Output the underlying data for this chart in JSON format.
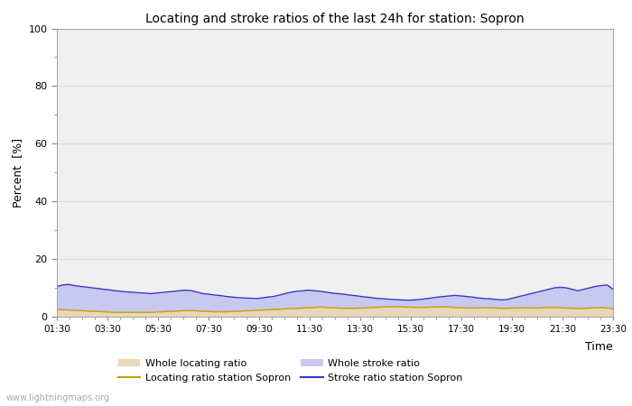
{
  "title": "Locating and stroke ratios of the last 24h for station: Sopron",
  "xlabel": "Time",
  "ylabel": "Percent  [%]",
  "watermark": "www.lightningmaps.org",
  "ylim": [
    0,
    100
  ],
  "yticks": [
    0,
    20,
    40,
    60,
    80,
    100
  ],
  "yticks_minor": [
    10,
    30,
    50,
    70,
    90
  ],
  "xtick_labels": [
    "01:30",
    "03:30",
    "05:30",
    "07:30",
    "09:30",
    "11:30",
    "13:30",
    "15:30",
    "17:30",
    "19:30",
    "21:30",
    "23:30"
  ],
  "background_color": "#ffffff",
  "plot_bg_color": "#f0f0f0",
  "grid_color": "#dddddd",
  "whole_locating_fill_color": "#e8d8b8",
  "whole_stroke_fill_color": "#c8c8f0",
  "locating_line_color": "#c8a000",
  "stroke_line_color": "#3838c8",
  "n_points": 96,
  "whole_stroke_data": [
    10.5,
    11.0,
    11.2,
    10.8,
    10.5,
    10.3,
    10.0,
    9.8,
    9.5,
    9.3,
    9.0,
    8.8,
    8.6,
    8.5,
    8.3,
    8.2,
    8.0,
    8.2,
    8.4,
    8.6,
    8.8,
    9.0,
    9.2,
    9.0,
    8.5,
    8.0,
    7.8,
    7.5,
    7.3,
    7.0,
    6.8,
    6.6,
    6.5,
    6.4,
    6.3,
    6.5,
    6.8,
    7.0,
    7.5,
    8.0,
    8.5,
    8.8,
    9.0,
    9.2,
    9.0,
    8.8,
    8.5,
    8.2,
    8.0,
    7.8,
    7.5,
    7.3,
    7.0,
    6.8,
    6.5,
    6.3,
    6.2,
    6.0,
    5.9,
    5.8,
    5.7,
    5.8,
    6.0,
    6.2,
    6.5,
    6.8,
    7.0,
    7.2,
    7.4,
    7.2,
    7.0,
    6.8,
    6.5,
    6.3,
    6.2,
    6.0,
    5.8,
    6.0,
    6.5,
    7.0,
    7.5,
    8.0,
    8.5,
    9.0,
    9.5,
    10.0,
    10.2,
    10.0,
    9.5,
    9.0,
    9.5,
    10.0,
    10.5,
    10.8,
    11.0,
    9.5
  ],
  "whole_locating_data": [
    2.5,
    2.4,
    2.3,
    2.2,
    2.1,
    2.0,
    1.9,
    1.8,
    1.7,
    1.6,
    1.5,
    1.5,
    1.5,
    1.5,
    1.5,
    1.5,
    1.5,
    1.6,
    1.7,
    1.8,
    1.9,
    2.0,
    2.1,
    2.1,
    2.0,
    1.9,
    1.8,
    1.7,
    1.7,
    1.7,
    1.8,
    1.9,
    2.0,
    2.1,
    2.2,
    2.3,
    2.4,
    2.5,
    2.6,
    2.7,
    2.8,
    2.9,
    3.0,
    3.1,
    3.2,
    3.3,
    3.2,
    3.1,
    3.0,
    2.9,
    2.9,
    2.9,
    3.0,
    3.1,
    3.2,
    3.3,
    3.4,
    3.5,
    3.5,
    3.4,
    3.3,
    3.2,
    3.2,
    3.2,
    3.3,
    3.4,
    3.4,
    3.3,
    3.2,
    3.1,
    3.0,
    3.0,
    3.0,
    3.1,
    3.1,
    3.0,
    2.9,
    2.9,
    3.0,
    3.0,
    3.1,
    3.0,
    3.0,
    3.1,
    3.2,
    3.2,
    3.1,
    3.0,
    2.9,
    2.8,
    2.9,
    3.0,
    3.1,
    3.2,
    3.0,
    2.8
  ],
  "locating_line_data": [
    2.5,
    2.4,
    2.3,
    2.2,
    2.1,
    2.0,
    1.9,
    1.8,
    1.7,
    1.6,
    1.5,
    1.5,
    1.5,
    1.5,
    1.5,
    1.5,
    1.5,
    1.6,
    1.7,
    1.8,
    1.9,
    2.0,
    2.1,
    2.1,
    2.0,
    1.9,
    1.8,
    1.7,
    1.7,
    1.7,
    1.8,
    1.9,
    2.0,
    2.1,
    2.2,
    2.3,
    2.4,
    2.5,
    2.6,
    2.7,
    2.8,
    2.9,
    3.0,
    3.1,
    3.2,
    3.3,
    3.2,
    3.1,
    3.0,
    2.9,
    2.9,
    2.9,
    3.0,
    3.1,
    3.2,
    3.3,
    3.4,
    3.5,
    3.5,
    3.4,
    3.3,
    3.2,
    3.2,
    3.2,
    3.3,
    3.4,
    3.4,
    3.3,
    3.2,
    3.1,
    3.0,
    3.0,
    3.0,
    3.1,
    3.1,
    3.0,
    2.9,
    2.9,
    3.0,
    3.0,
    3.1,
    3.0,
    3.0,
    3.1,
    3.2,
    3.2,
    3.1,
    3.0,
    2.9,
    2.8,
    2.9,
    3.0,
    3.1,
    3.2,
    3.0,
    2.8
  ],
  "stroke_line_data": [
    10.5,
    11.0,
    11.2,
    10.8,
    10.5,
    10.3,
    10.0,
    9.8,
    9.5,
    9.3,
    9.0,
    8.8,
    8.6,
    8.5,
    8.3,
    8.2,
    8.0,
    8.2,
    8.4,
    8.6,
    8.8,
    9.0,
    9.2,
    9.0,
    8.5,
    8.0,
    7.8,
    7.5,
    7.3,
    7.0,
    6.8,
    6.6,
    6.5,
    6.4,
    6.3,
    6.5,
    6.8,
    7.0,
    7.5,
    8.0,
    8.5,
    8.8,
    9.0,
    9.2,
    9.0,
    8.8,
    8.5,
    8.2,
    8.0,
    7.8,
    7.5,
    7.3,
    7.0,
    6.8,
    6.5,
    6.3,
    6.2,
    6.0,
    5.9,
    5.8,
    5.7,
    5.8,
    6.0,
    6.2,
    6.5,
    6.8,
    7.0,
    7.2,
    7.4,
    7.2,
    7.0,
    6.8,
    6.5,
    6.3,
    6.2,
    6.0,
    5.8,
    6.0,
    6.5,
    7.0,
    7.5,
    8.0,
    8.5,
    9.0,
    9.5,
    10.0,
    10.2,
    10.0,
    9.5,
    9.0,
    9.5,
    10.0,
    10.5,
    10.8,
    11.0,
    9.5
  ]
}
